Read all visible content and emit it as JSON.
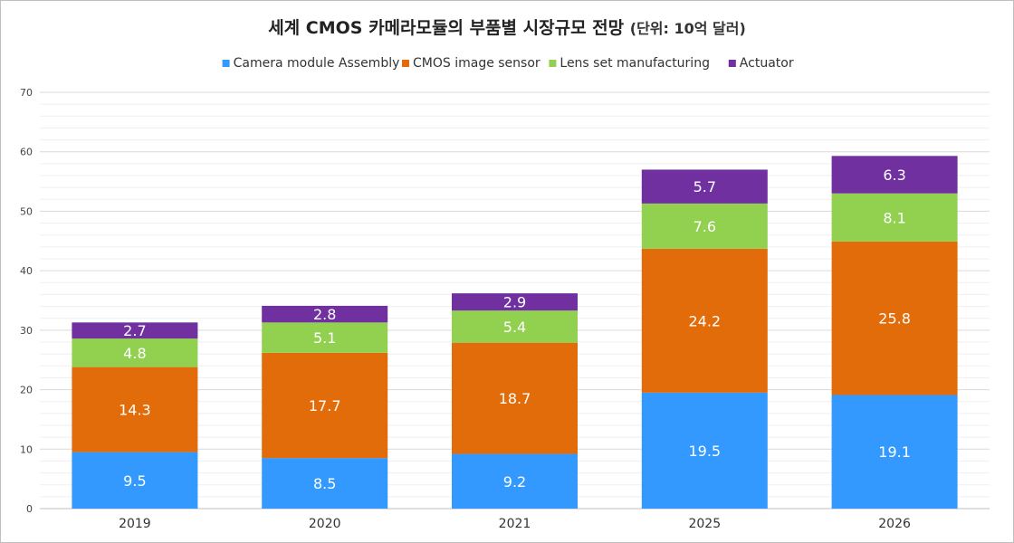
{
  "title": "세계 CMOS 카메라모듈의 부품별 시장규모 전망",
  "unit": "(단위: 10억 달러)",
  "chart_data": {
    "type": "bar",
    "stacked": true,
    "categories": [
      "2019",
      "2020",
      "2021",
      "2025",
      "2026"
    ],
    "series": [
      {
        "name": "Camera module Assembly",
        "color": "#3399ff",
        "values": [
          9.5,
          8.5,
          9.2,
          19.5,
          19.1
        ]
      },
      {
        "name": "CMOS image sensor",
        "color": "#e36c0a",
        "values": [
          14.3,
          17.7,
          18.7,
          24.2,
          25.8
        ]
      },
      {
        "name": "Lens set manufacturing",
        "color": "#92d050",
        "values": [
          4.8,
          5.1,
          5.4,
          7.6,
          8.1
        ]
      },
      {
        "name": "Actuator",
        "color": "#7030a0",
        "values": [
          2.7,
          2.8,
          2.9,
          5.7,
          6.3
        ]
      }
    ],
    "ylim": [
      0,
      70
    ],
    "yticks": [
      0,
      10,
      20,
      30,
      40,
      50,
      60,
      70
    ],
    "legend_position": "top",
    "grid": true
  }
}
